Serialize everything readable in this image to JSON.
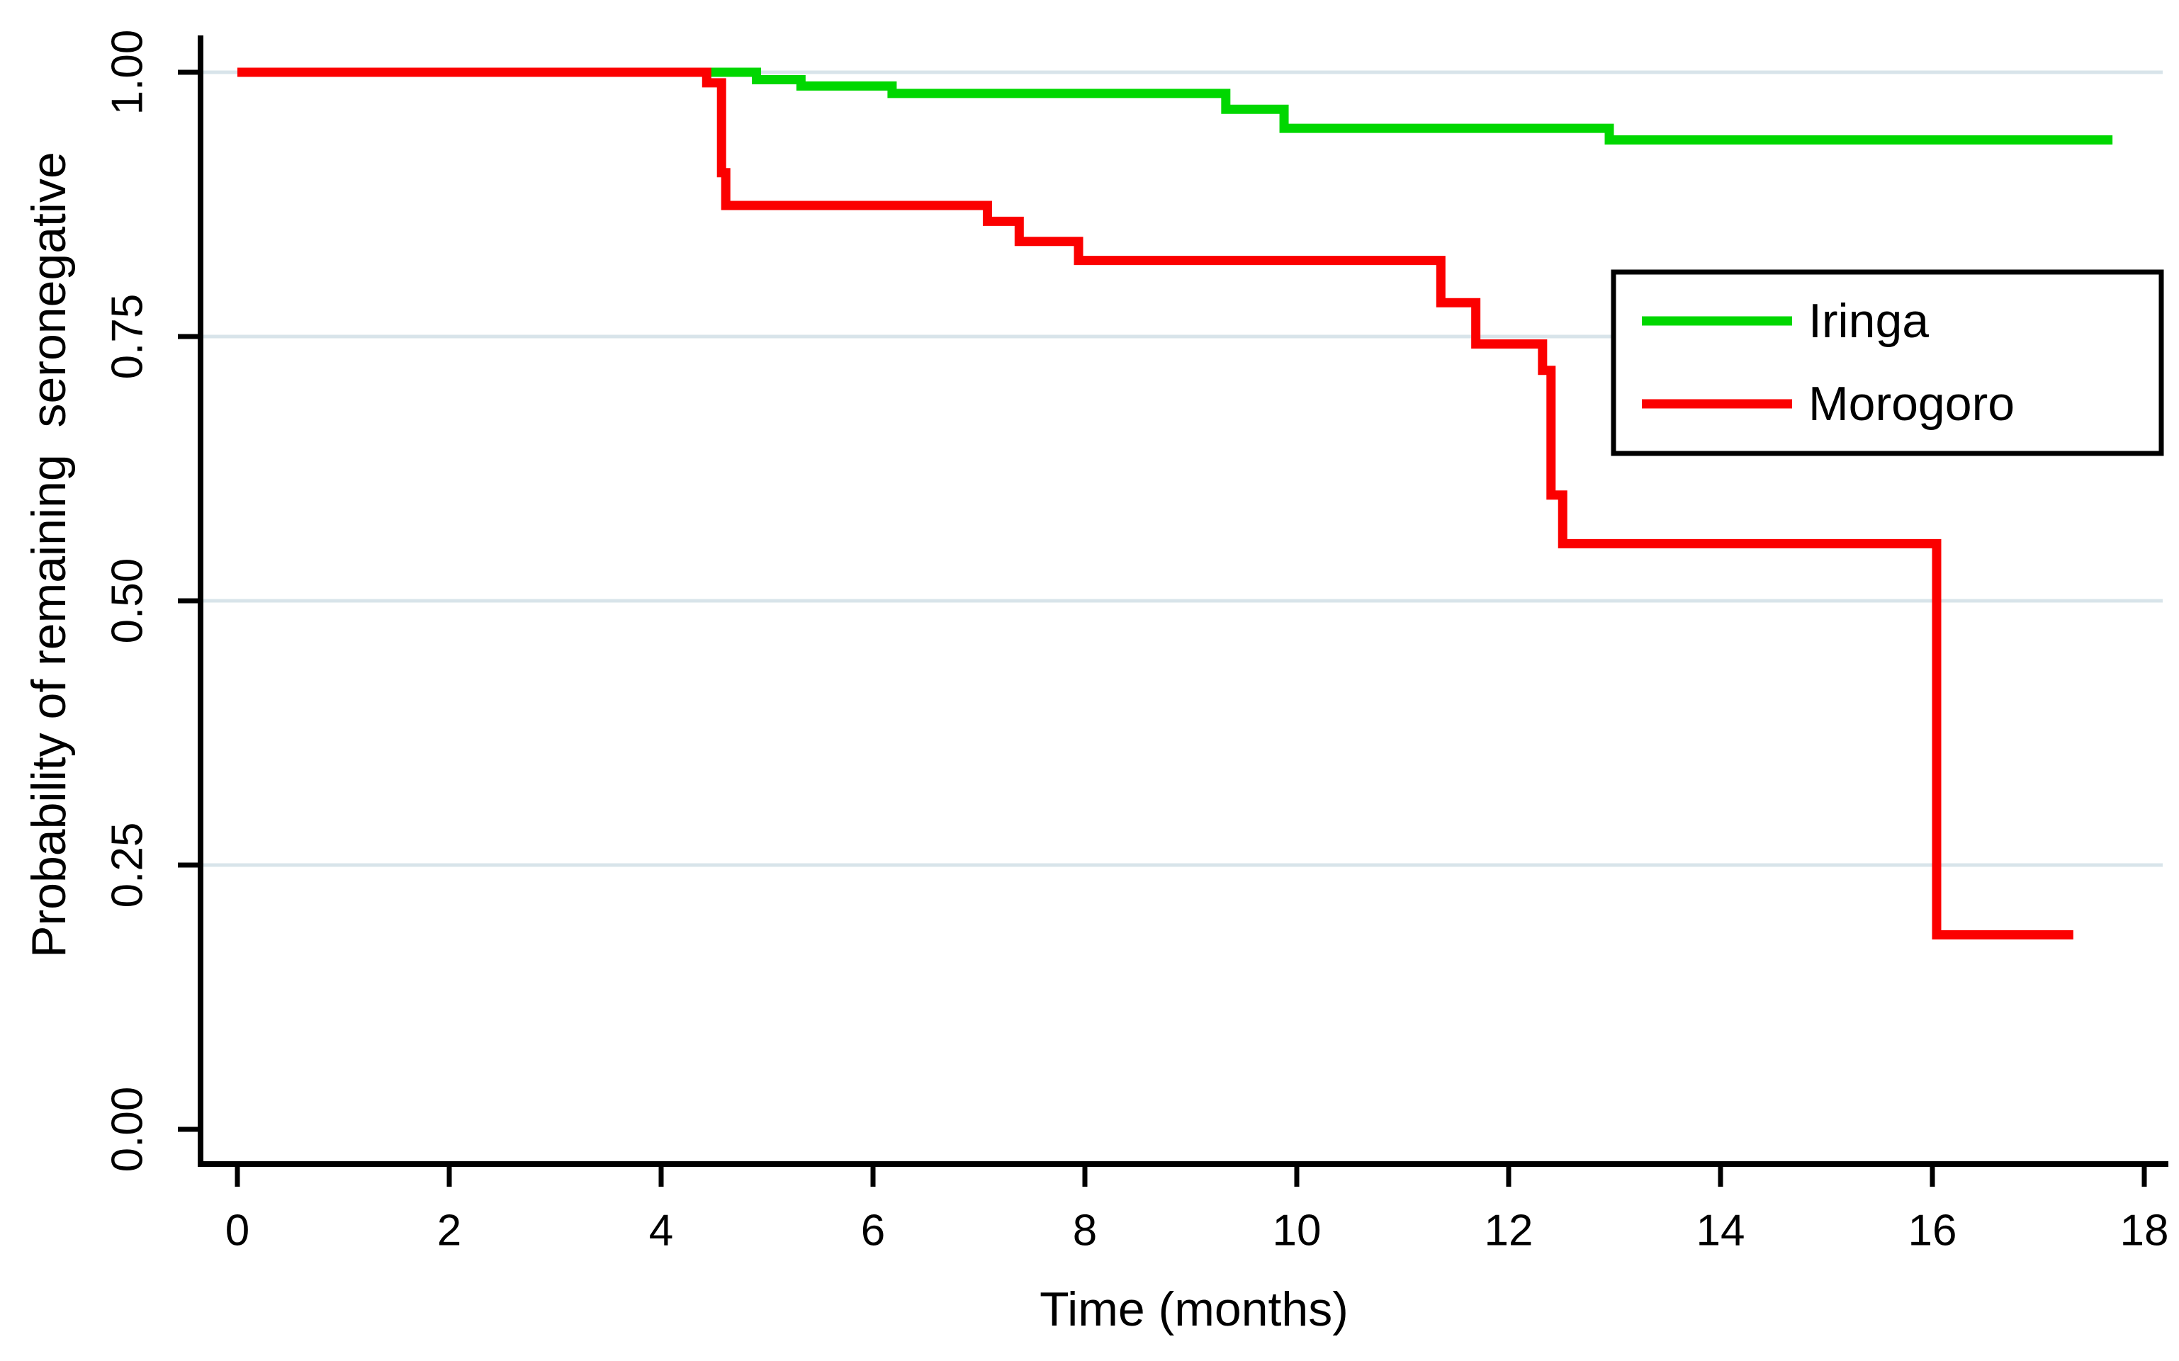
{
  "figure": {
    "background": "#ffffff",
    "x_axis_title": "Time (months)",
    "y_axis_title": "Probability of remaining  seronegative"
  },
  "chart_data": {
    "type": "line",
    "subtype": "kaplan-meier-step",
    "step": "hv",
    "title": "",
    "xlabel": "Time (months)",
    "ylabel": "Probability of remaining  seronegative",
    "xlim": [
      0,
      18
    ],
    "ylim": [
      0.0,
      1.0
    ],
    "x_ticks": [
      0,
      2,
      4,
      6,
      8,
      10,
      12,
      14,
      16,
      18
    ],
    "y_tick_labels": [
      "0.00",
      "0.25",
      "0.50",
      "0.75",
      "1.00"
    ],
    "y_tick_values": [
      0.0,
      0.25,
      0.5,
      0.75,
      1.0
    ],
    "grid": "horizontal gridlines at 0.25, 0.50, 0.75, 1.00",
    "gridline_color": "#d8e4ea",
    "axis_color": "#000000",
    "legend_position": "upper right",
    "legend": {
      "entries": [
        {
          "label": "Iringa",
          "color": "#00d700"
        },
        {
          "label": "Morogoro",
          "color": "#fb0000"
        }
      ]
    },
    "series": [
      {
        "name": "Iringa",
        "color": "#00d700",
        "end_t": 17.7,
        "points": [
          [
            0.0,
            1.0
          ],
          [
            4.9,
            0.993
          ],
          [
            5.32,
            0.987
          ],
          [
            6.18,
            0.98
          ],
          [
            9.33,
            0.965
          ],
          [
            9.88,
            0.947
          ],
          [
            12.95,
            0.936
          ]
        ]
      },
      {
        "name": "Morogoro",
        "color": "#fb0000",
        "end_t": 17.33,
        "points": [
          [
            0.0,
            1.0
          ],
          [
            4.43,
            0.99
          ],
          [
            4.57,
            0.905
          ],
          [
            4.61,
            0.874
          ],
          [
            7.08,
            0.859
          ],
          [
            7.38,
            0.84
          ],
          [
            7.94,
            0.822
          ],
          [
            11.36,
            0.782
          ],
          [
            11.69,
            0.743
          ],
          [
            12.32,
            0.718
          ],
          [
            12.4,
            0.6
          ],
          [
            12.51,
            0.554
          ],
          [
            16.04,
            0.184
          ]
        ]
      }
    ]
  }
}
